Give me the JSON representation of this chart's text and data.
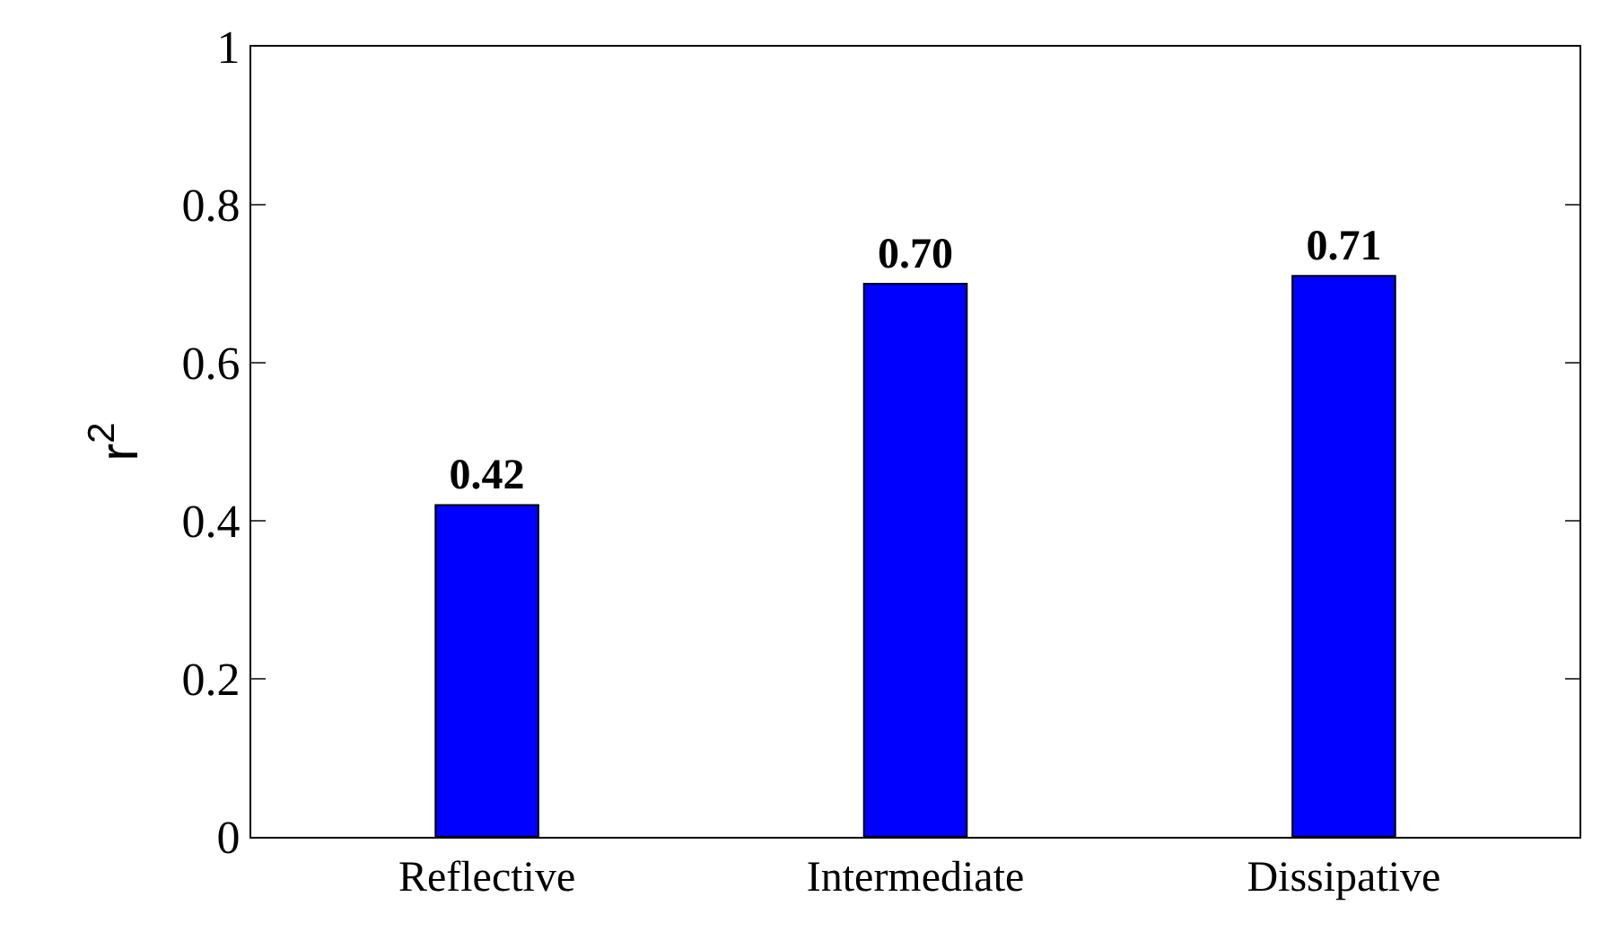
{
  "chart_data": {
    "type": "bar",
    "ylabel": "r$^{2}$",
    "categories": [
      "Reflective",
      "Intermediate",
      "Dissipative"
    ],
    "values": [
      0.42,
      0.7,
      0.71
    ],
    "value_labels": [
      "0.42",
      "0.70",
      "0.71"
    ],
    "color": "#0000ff",
    "ylim": [
      0,
      1
    ],
    "yticks": [
      0,
      0.2,
      0.4,
      0.6,
      0.8,
      1
    ]
  }
}
